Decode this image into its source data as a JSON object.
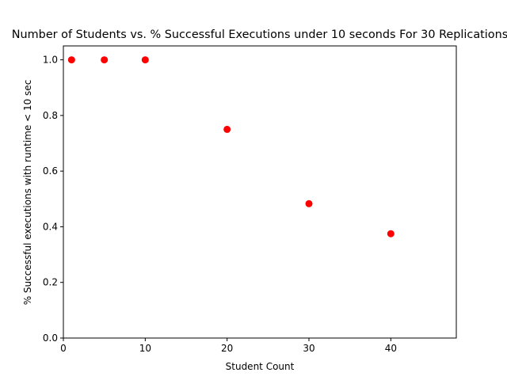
{
  "chart_data": {
    "type": "scatter",
    "title": "Number of Students vs. % Successful Executions under 10 seconds For 30 Replications",
    "xlabel": "Student Count",
    "ylabel": "% Successful executions with runtime < 10 sec",
    "xlim": [
      0,
      48
    ],
    "ylim": [
      0.0,
      1.05
    ],
    "xticks": [
      0,
      10,
      20,
      30,
      40
    ],
    "xtick_labels": [
      "0",
      "10",
      "20",
      "30",
      "40"
    ],
    "yticks": [
      0.0,
      0.2,
      0.4,
      0.6,
      0.8,
      1.0
    ],
    "ytick_labels": [
      "0.0",
      "0.2",
      "0.4",
      "0.6",
      "0.8",
      "1.0"
    ],
    "grid": false,
    "marker_color": "#ff0000",
    "points": [
      {
        "x": 1,
        "y": 1.0
      },
      {
        "x": 5,
        "y": 1.0
      },
      {
        "x": 10,
        "y": 1.0
      },
      {
        "x": 20,
        "y": 0.75
      },
      {
        "x": 30,
        "y": 0.483
      },
      {
        "x": 40,
        "y": 0.375
      }
    ]
  }
}
